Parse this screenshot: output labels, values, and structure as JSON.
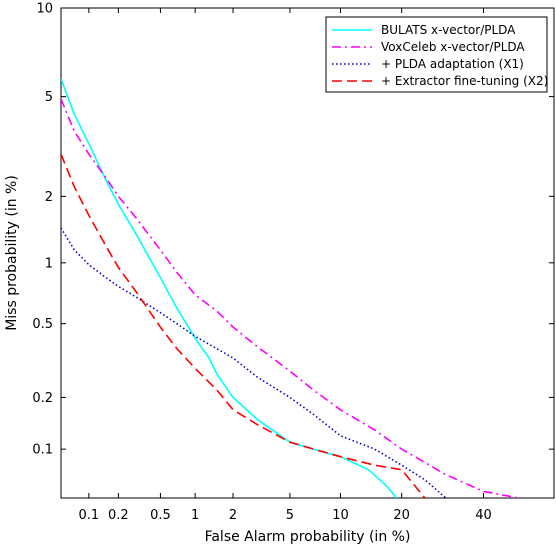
{
  "chart_data": {
    "type": "line",
    "title": "",
    "xlabel": "False Alarm probability (in %)",
    "ylabel": "Miss probability (in %)",
    "x_scale": "probit",
    "y_scale": "probit",
    "xlim": [
      0.05,
      60
    ],
    "ylim": [
      0.05,
      10
    ],
    "x_ticks": [
      0.1,
      0.2,
      0.5,
      1,
      2,
      5,
      10,
      20,
      40
    ],
    "x_tick_labels": [
      "0.1",
      "0.2",
      "0.5",
      "1",
      "2",
      "5",
      "10",
      "20",
      "40"
    ],
    "y_ticks": [
      0.1,
      0.2,
      0.5,
      1,
      2,
      5,
      10
    ],
    "y_tick_labels": [
      "0.1",
      "0.2",
      "0.5",
      "1",
      "2",
      "5",
      "10"
    ],
    "grid": false,
    "legend_position": "top-right",
    "series": [
      {
        "name": "BULATS x-vector/PLDA",
        "color": "#00ffff",
        "dash": "solid",
        "x": [
          0.05,
          0.07,
          0.1,
          0.15,
          0.2,
          0.3,
          0.5,
          0.7,
          1.0,
          1.3,
          1.5,
          2.0,
          3.0,
          5.0,
          7.0,
          10,
          14,
          17,
          19
        ],
        "y": [
          5.8,
          4.3,
          3.3,
          2.35,
          1.85,
          1.35,
          0.85,
          0.6,
          0.42,
          0.33,
          0.27,
          0.2,
          0.15,
          0.11,
          0.1,
          0.09,
          0.075,
          0.06,
          0.05
        ]
      },
      {
        "name": "VoxCeleb x-vector/PLDA",
        "color": "#ff00ff",
        "dash": "dashdot",
        "x": [
          0.05,
          0.07,
          0.1,
          0.15,
          0.2,
          0.3,
          0.5,
          0.7,
          1.0,
          1.5,
          2.0,
          3.0,
          5.0,
          7.0,
          10,
          15,
          20,
          30,
          40,
          50
        ],
        "y": [
          4.9,
          3.7,
          3.0,
          2.4,
          2.0,
          1.6,
          1.15,
          0.9,
          0.7,
          0.58,
          0.48,
          0.38,
          0.28,
          0.22,
          0.17,
          0.13,
          0.1,
          0.07,
          0.055,
          0.05
        ]
      },
      {
        "name": "+ PLDA adaptation (X1)",
        "color": "#0000cc",
        "dash": "dotted",
        "x": [
          0.05,
          0.07,
          0.1,
          0.15,
          0.2,
          0.3,
          0.5,
          0.7,
          1.0,
          1.5,
          2.0,
          3.0,
          5.0,
          7.0,
          10,
          15,
          20,
          25,
          30
        ],
        "y": [
          1.45,
          1.15,
          0.98,
          0.85,
          0.77,
          0.68,
          0.57,
          0.5,
          0.43,
          0.37,
          0.33,
          0.26,
          0.2,
          0.16,
          0.12,
          0.1,
          0.08,
          0.065,
          0.05
        ]
      },
      {
        "name": "+ Extractor fine-tuning (X2)",
        "color": "#ff0000",
        "dash": "dashed",
        "x": [
          0.05,
          0.07,
          0.1,
          0.15,
          0.2,
          0.3,
          0.5,
          0.7,
          1.0,
          1.5,
          2.0,
          3.0,
          5.0,
          7.0,
          10,
          15,
          20,
          25
        ],
        "y": [
          3.0,
          2.2,
          1.65,
          1.2,
          0.95,
          0.72,
          0.48,
          0.37,
          0.29,
          0.22,
          0.17,
          0.14,
          0.11,
          0.1,
          0.09,
          0.08,
          0.075,
          0.05
        ]
      }
    ]
  }
}
